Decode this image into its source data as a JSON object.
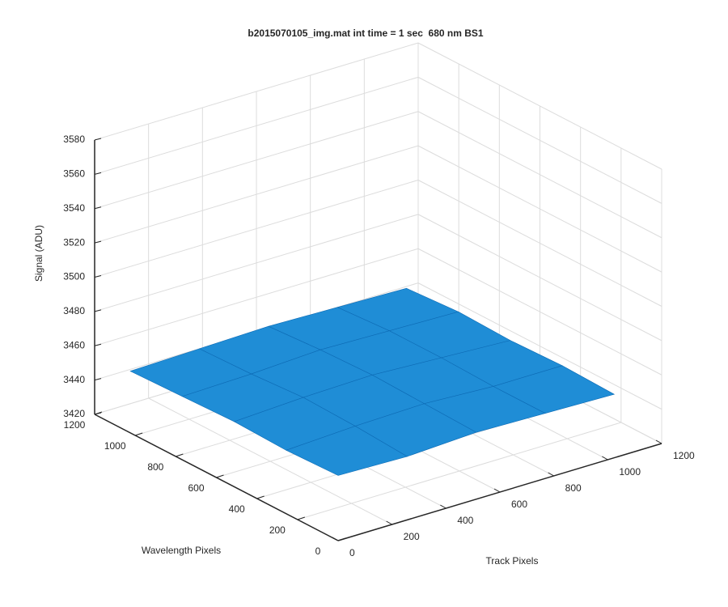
{
  "chart_data": {
    "type": "surface",
    "title": "b2015070105_img.mat int time = 1 sec  680 nm BS1",
    "xlabel": "Track Pixels",
    "ylabel": "Wavelength Pixels",
    "zlabel": "Signal (ADU)",
    "x": [
      0,
      256,
      512,
      768,
      1024
    ],
    "y": [
      0,
      256,
      512,
      768,
      1024
    ],
    "z": [
      [
        3458,
        3457,
        3459,
        3458,
        3457
      ],
      [
        3457,
        3459,
        3460,
        3458,
        3458
      ],
      [
        3458,
        3460,
        3461,
        3459,
        3457
      ],
      [
        3457,
        3458,
        3460,
        3459,
        3458
      ],
      [
        3456,
        3457,
        3458,
        3457,
        3456
      ]
    ],
    "color": "#1f8dd6",
    "xlim": [
      0,
      1200
    ],
    "ylim": [
      0,
      1200
    ],
    "zlim": [
      3420,
      3580
    ],
    "xticks": [
      0,
      200,
      400,
      600,
      800,
      1000,
      1200
    ],
    "yticks": [
      0,
      200,
      400,
      600,
      800,
      1000,
      1200
    ],
    "zticks": [
      3420,
      3440,
      3460,
      3480,
      3500,
      3520,
      3540,
      3560,
      3580
    ],
    "grid": true
  }
}
